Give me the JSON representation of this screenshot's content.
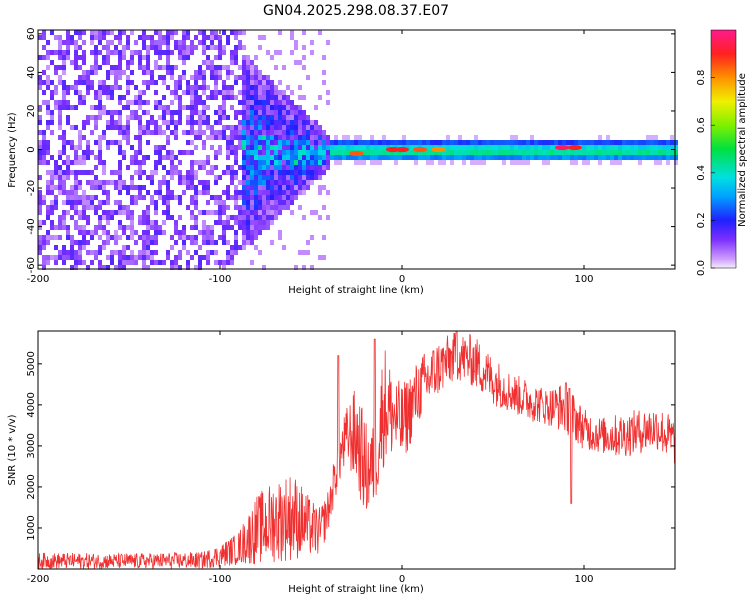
{
  "title": "GN04.2025.298.08.37.E07",
  "chart_data": [
    {
      "type": "heatmap",
      "name": "spectrogram",
      "xlabel": "Height of straight line (km)",
      "ylabel": "Frequency (Hz)",
      "xlim": [
        -200,
        150
      ],
      "ylim": [
        -62,
        62
      ],
      "xticks": [
        -200,
        -100,
        0,
        100
      ],
      "yticks": [
        -60,
        -40,
        -20,
        0,
        20,
        40,
        60
      ],
      "description_regions": [
        {
          "x_range": [
            -200,
            -90
          ],
          "pattern": "broadband noise across all frequencies",
          "level": 0.15
        },
        {
          "x_range": [
            -90,
            -40
          ],
          "pattern": "energy concentrating toward 0 Hz",
          "level": 0.35
        },
        {
          "x_range": [
            -40,
            150
          ],
          "pattern": "narrow band centred near 0 Hz",
          "level": 0.45
        }
      ],
      "hot_spots": [
        {
          "x": -25,
          "y": -2,
          "value": 0.85
        },
        {
          "x": -5,
          "y": 0,
          "value": 0.9
        },
        {
          "x": 0,
          "y": 0,
          "value": 0.9
        },
        {
          "x": 10,
          "y": 0,
          "value": 0.85
        },
        {
          "x": 20,
          "y": 0,
          "value": 0.8
        },
        {
          "x": 88,
          "y": 1,
          "value": 0.95
        },
        {
          "x": 95,
          "y": 1,
          "value": 0.9
        }
      ],
      "colorbar": {
        "label": "Normalized spectral amplitude",
        "range": [
          0,
          1
        ],
        "ticks": [
          0.0,
          0.2,
          0.4,
          0.6,
          0.8
        ]
      }
    },
    {
      "type": "line",
      "name": "snr",
      "xlabel": "Height of straight line (km)",
      "ylabel": "SNR (10 * v/v)",
      "xlim": [
        -200,
        150
      ],
      "ylim": [
        0,
        5800
      ],
      "xticks": [
        -200,
        -100,
        0,
        100
      ],
      "yticks": [
        1000,
        2000,
        3000,
        4000,
        5000
      ],
      "color": "#f03030",
      "envelope": {
        "x": [
          -200,
          -150,
          -110,
          -100,
          -90,
          -80,
          -70,
          -60,
          -50,
          -45,
          -40,
          -35,
          -30,
          -25,
          -20,
          -15,
          -10,
          -5,
          0,
          10,
          20,
          30,
          40,
          50,
          60,
          70,
          80,
          90,
          100,
          110,
          120,
          130,
          140,
          150
        ],
        "low": [
          0,
          0,
          0,
          50,
          100,
          100,
          150,
          200,
          300,
          300,
          1000,
          2000,
          2500,
          2000,
          1200,
          1500,
          2500,
          2700,
          2500,
          3600,
          4200,
          4600,
          4400,
          4000,
          3800,
          3600,
          3500,
          3300,
          2900,
          2800,
          2700,
          2800,
          2900,
          2500
        ],
        "high": [
          400,
          380,
          420,
          600,
          900,
          1800,
          2200,
          2400,
          1700,
          1500,
          2000,
          3300,
          4000,
          4500,
          3600,
          3500,
          5600,
          4800,
          4500,
          5200,
          5600,
          5800,
          5700,
          5200,
          4800,
          4600,
          4400,
          4600,
          3900,
          3700,
          3800,
          3900,
          4000,
          3700
        ]
      },
      "spikes": [
        {
          "x": -35,
          "y": 5200
        },
        {
          "x": -15,
          "y": 5600
        },
        {
          "x": 30,
          "y": 5900
        },
        {
          "x": 93,
          "y": 1600
        },
        {
          "x": 92,
          "y": 4400
        }
      ]
    }
  ]
}
